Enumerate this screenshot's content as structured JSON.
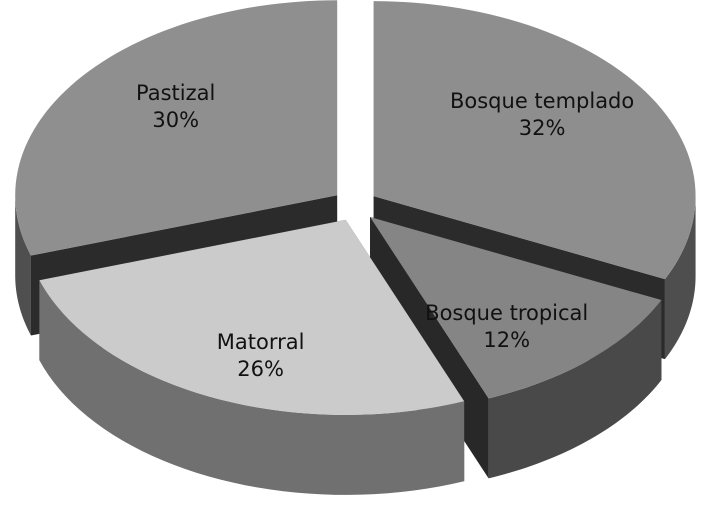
{
  "chart_data": {
    "type": "pie",
    "categories": [
      "Bosque templado",
      "Bosque tropical",
      "Matorral",
      "Pastizal"
    ],
    "values": [
      32,
      12,
      26,
      30
    ],
    "value_labels": [
      "32%",
      "12%",
      "26%",
      "30%"
    ],
    "colors": [
      "#8e8e8e",
      "#858585",
      "#cbcbcb",
      "#8f8f8f"
    ]
  }
}
